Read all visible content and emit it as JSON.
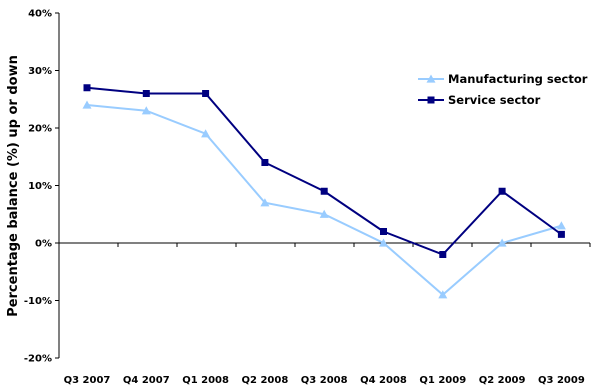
{
  "chart_data": {
    "type": "line",
    "title": "",
    "xlabel": "",
    "ylabel": "Percentage balance (%) up or down",
    "categories": [
      "Q3 2007",
      "Q4 2007",
      "Q1 2008",
      "Q2 2008",
      "Q3 2008",
      "Q4 2008",
      "Q1 2009",
      "Q2 2009",
      "Q3 2009"
    ],
    "ylim": [
      -20,
      40
    ],
    "yticks": [
      -20,
      -10,
      0,
      10,
      20,
      30,
      40
    ],
    "ytick_labels": [
      "-20%",
      "-10%",
      "0%",
      "10%",
      "20%",
      "30%",
      "40%"
    ],
    "grid": false,
    "legend_position": "top-right",
    "series": [
      {
        "name": "Manufacturing sector",
        "color": "#99ccff",
        "marker": "triangle",
        "values": [
          24,
          23,
          19,
          7,
          5,
          0,
          -9,
          0,
          3
        ]
      },
      {
        "name": "Service sector",
        "color": "#000080",
        "marker": "square",
        "values": [
          27,
          26,
          26,
          14,
          9,
          2,
          -2,
          9,
          1.5
        ]
      }
    ]
  }
}
